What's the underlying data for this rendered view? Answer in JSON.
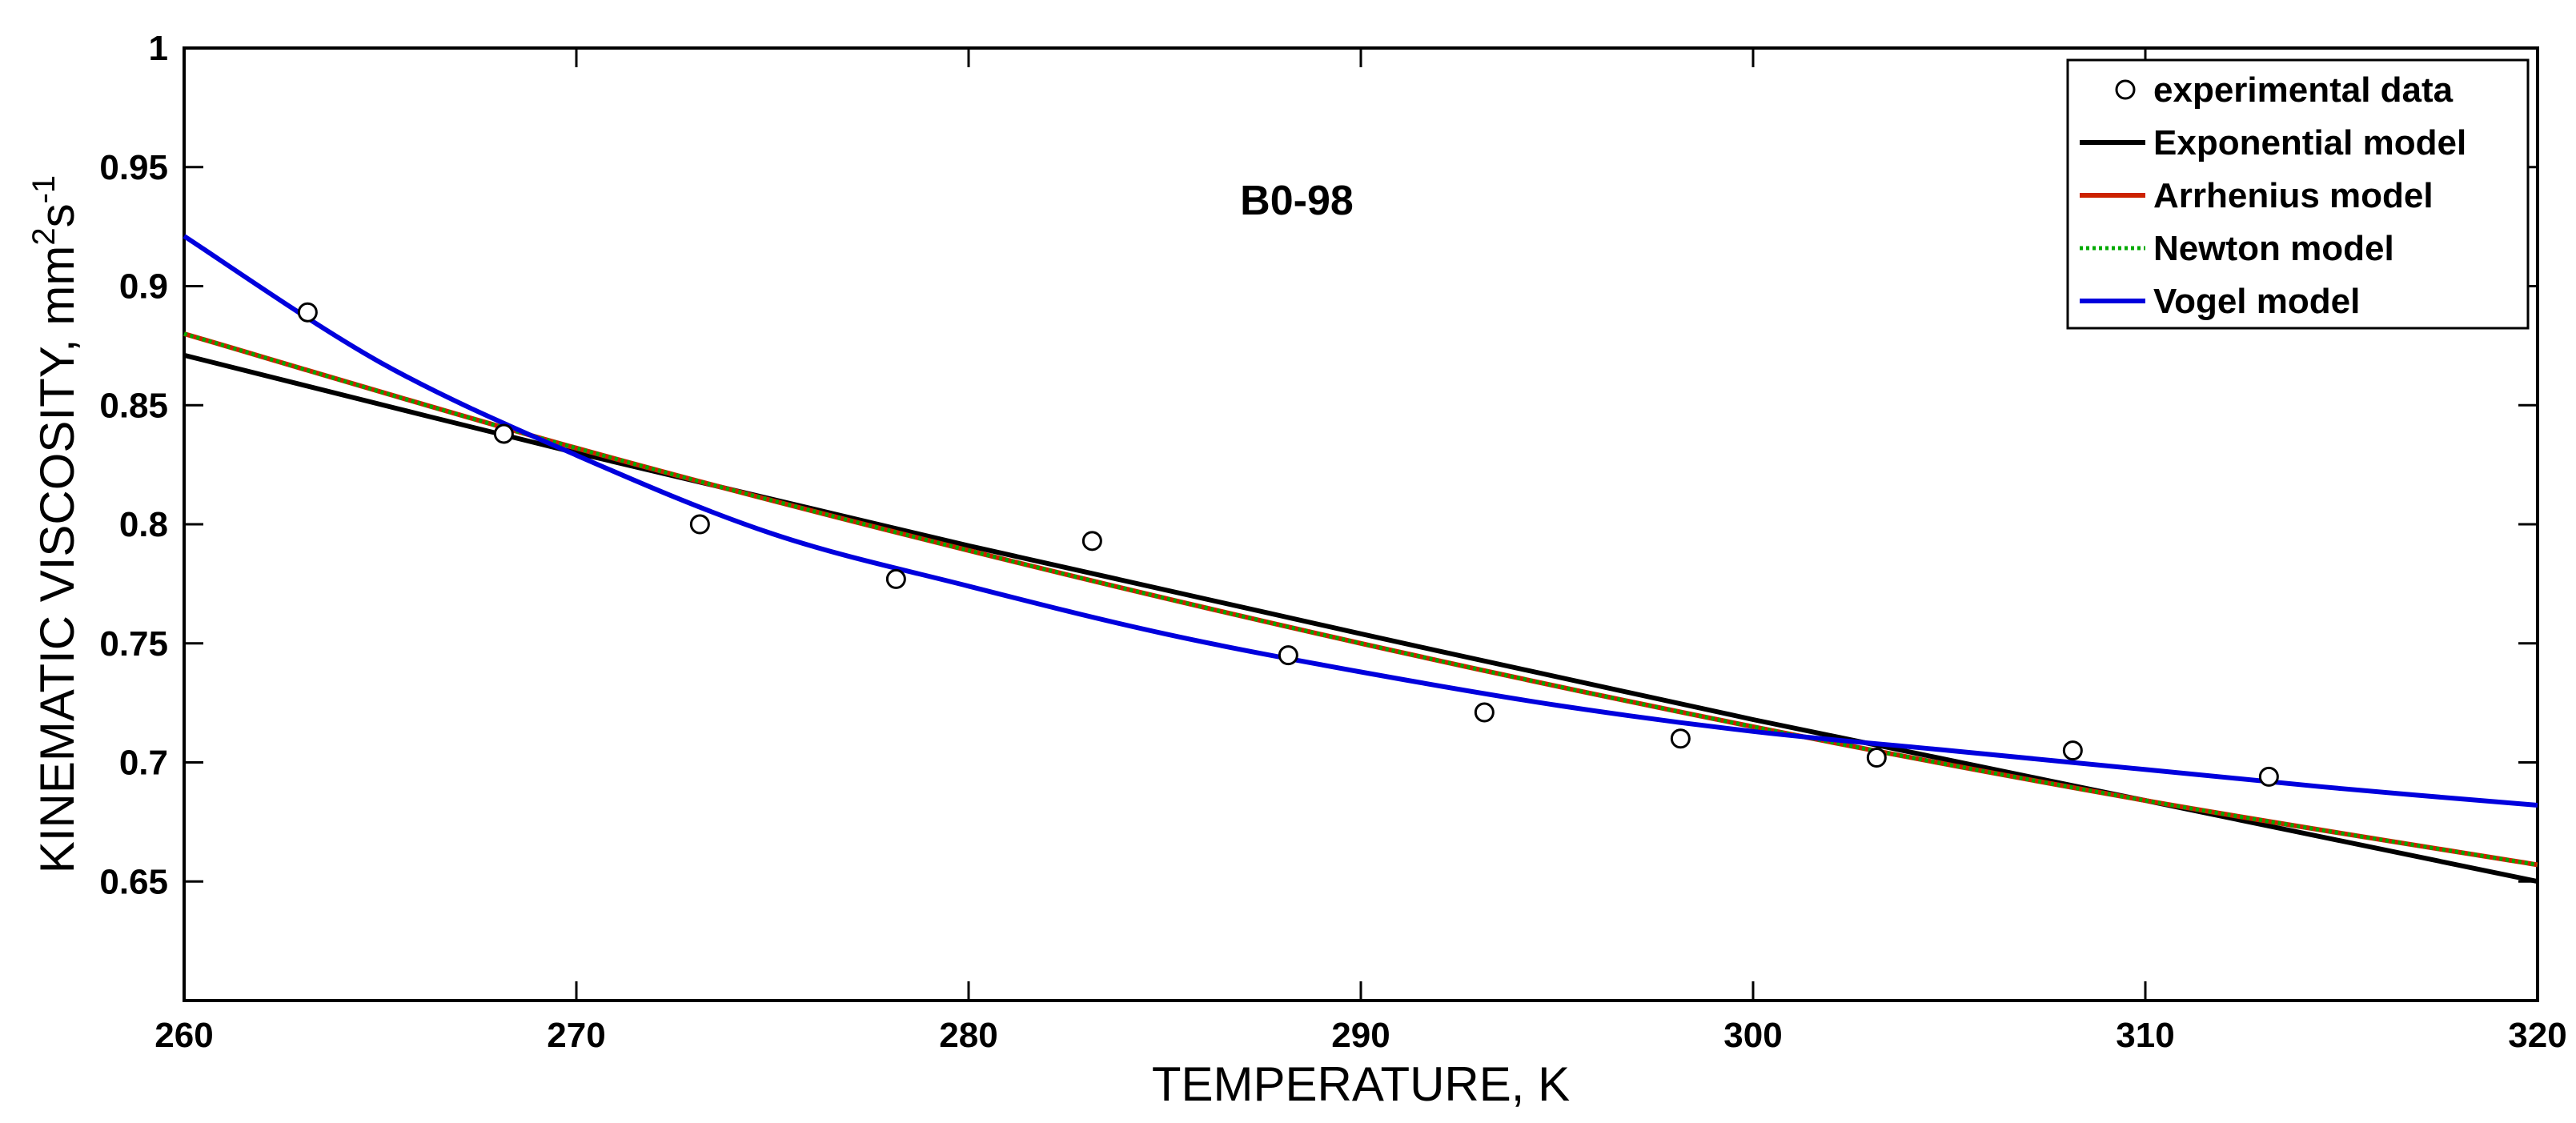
{
  "chart_data": {
    "type": "line",
    "annotation": "B0-98",
    "xlabel": "TEMPERATURE, K",
    "ylabel": "KINEMATIC VISCOSITY, mm²s⁻¹",
    "ylabel_parts": {
      "base": "KINEMATIC VISCOSITY, mm",
      "sup1": "2",
      "mid": "s",
      "sup2": "-1"
    },
    "xlim": [
      260,
      320
    ],
    "ylim": [
      0.6,
      1.0
    ],
    "xticks": [
      260,
      270,
      280,
      290,
      300,
      310,
      320
    ],
    "yticks": [
      0.65,
      0.7,
      0.75,
      0.8,
      0.85,
      0.9,
      0.95,
      1
    ],
    "ytick_labels": [
      "0.65",
      "0.7",
      "0.75",
      "0.8",
      "0.85",
      "0.9",
      "0.95",
      "1"
    ],
    "grid": false,
    "legend_position": "top-right",
    "scatter": {
      "name": "experimental data",
      "color": "#000000",
      "x": [
        263.15,
        268.15,
        273.15,
        278.15,
        283.15,
        288.15,
        293.15,
        298.15,
        303.15,
        308.15,
        313.15
      ],
      "y": [
        0.889,
        0.838,
        0.8,
        0.777,
        0.793,
        0.745,
        0.721,
        0.71,
        0.702,
        0.705,
        0.694
      ]
    },
    "series": [
      {
        "name": "Exponential model",
        "color": "#000000",
        "x": [
          260,
          270,
          280,
          290,
          300,
          310,
          320
        ],
        "y": [
          0.871,
          0.83,
          0.791,
          0.754,
          0.718,
          0.684,
          0.65
        ]
      },
      {
        "name": "Arrhenius model",
        "color": "#cc2200",
        "x": [
          260,
          270,
          280,
          290,
          300,
          310,
          320
        ],
        "y": [
          0.88,
          0.832,
          0.789,
          0.75,
          0.715,
          0.684,
          0.657
        ]
      },
      {
        "name": "Newton model",
        "color": "#00aa00",
        "dashed": true,
        "x": [
          260,
          270,
          280,
          290,
          300,
          310,
          320
        ],
        "y": [
          0.88,
          0.832,
          0.789,
          0.75,
          0.715,
          0.684,
          0.657
        ]
      },
      {
        "name": "Vogel model",
        "color": "#0000dd",
        "x": [
          260,
          265,
          270,
          275,
          280,
          285,
          290,
          295,
          300,
          305,
          310,
          315,
          320
        ],
        "y": [
          0.921,
          0.868,
          0.829,
          0.796,
          0.774,
          0.754,
          0.738,
          0.724,
          0.713,
          0.705,
          0.697,
          0.689,
          0.682
        ]
      }
    ]
  }
}
